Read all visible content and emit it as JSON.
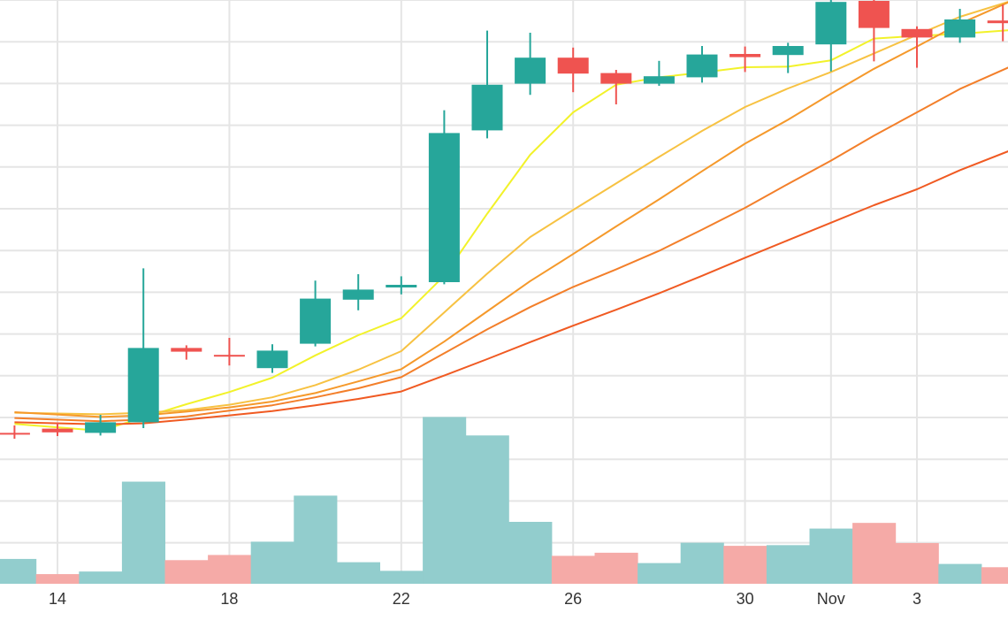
{
  "chart_data": {
    "type": "candlestick",
    "title": "",
    "xlabel": "",
    "ylabel": "",
    "grid": true,
    "price_range": [
      0,
      100
    ],
    "volume_range": [
      0,
      100
    ],
    "x_ticks": [
      {
        "day": 14,
        "label": "14"
      },
      {
        "day": 18,
        "label": "18"
      },
      {
        "day": 22,
        "label": "22"
      },
      {
        "day": 26,
        "label": "26"
      },
      {
        "day": 30,
        "label": "30"
      },
      {
        "day": 32,
        "label": "Nov"
      },
      {
        "day": 34,
        "label": "3"
      }
    ],
    "candles": [
      {
        "day": 13,
        "open": 22.6,
        "close": 22.4,
        "high": 24.0,
        "low": 21.5
      },
      {
        "day": 14,
        "open": 23.4,
        "close": 22.7,
        "high": 24.5,
        "low": 22.0
      },
      {
        "day": 15,
        "open": 22.6,
        "close": 24.6,
        "high": 26.0,
        "low": 22.1
      },
      {
        "day": 16,
        "open": 24.6,
        "close": 38.6,
        "high": 53.6,
        "low": 23.5
      },
      {
        "day": 17,
        "open": 38.6,
        "close": 37.9,
        "high": 39.1,
        "low": 36.4
      },
      {
        "day": 18,
        "open": 37.3,
        "close": 37.1,
        "high": 40.5,
        "low": 35.3
      },
      {
        "day": 19,
        "open": 34.8,
        "close": 38.1,
        "high": 39.3,
        "low": 33.9
      },
      {
        "day": 20,
        "open": 39.4,
        "close": 47.9,
        "high": 51.3,
        "low": 38.9
      },
      {
        "day": 21,
        "open": 47.7,
        "close": 49.6,
        "high": 52.5,
        "low": 45.7
      },
      {
        "day": 22,
        "open": 50.0,
        "close": 50.5,
        "high": 52.1,
        "low": 48.7
      },
      {
        "day": 23,
        "open": 51.0,
        "close": 79.1,
        "high": 83.4,
        "low": 50.6
      },
      {
        "day": 24,
        "open": 79.6,
        "close": 88.2,
        "high": 98.4,
        "low": 78.1
      },
      {
        "day": 25,
        "open": 88.4,
        "close": 93.3,
        "high": 98.0,
        "low": 86.3
      },
      {
        "day": 26,
        "open": 93.3,
        "close": 90.3,
        "high": 95.2,
        "low": 86.8
      },
      {
        "day": 27,
        "open": 90.4,
        "close": 88.4,
        "high": 91.0,
        "low": 84.5
      },
      {
        "day": 28,
        "open": 88.4,
        "close": 89.8,
        "high": 92.7,
        "low": 88.0
      },
      {
        "day": 29,
        "open": 89.6,
        "close": 93.9,
        "high": 95.5,
        "low": 88.6
      },
      {
        "day": 30,
        "open": 94.0,
        "close": 93.4,
        "high": 95.4,
        "low": 90.6
      },
      {
        "day": 31,
        "open": 93.8,
        "close": 95.5,
        "high": 96.1,
        "low": 90.4
      },
      {
        "day": 32,
        "open": 95.8,
        "close": 103.8,
        "high": 105.2,
        "low": 90.7
      },
      {
        "day": 33,
        "open": 104.0,
        "close": 98.9,
        "high": 108.6,
        "low": 92.6
      },
      {
        "day": 34,
        "open": 98.7,
        "close": 97.1,
        "high": 99.2,
        "low": 91.4
      },
      {
        "day": 35,
        "open": 97.1,
        "close": 100.5,
        "high": 102.5,
        "low": 96.1
      },
      {
        "day": 36,
        "open": 100.3,
        "close": 99.8,
        "high": 103.3,
        "low": 96.4
      }
    ],
    "volume": [
      {
        "day": 13,
        "value": 14.4,
        "direction": "up"
      },
      {
        "day": 14,
        "value": 5.6,
        "direction": "down"
      },
      {
        "day": 15,
        "value": 7.1,
        "direction": "up"
      },
      {
        "day": 16,
        "value": 59.2,
        "direction": "up"
      },
      {
        "day": 17,
        "value": 13.7,
        "direction": "down"
      },
      {
        "day": 18,
        "value": 16.7,
        "direction": "down"
      },
      {
        "day": 19,
        "value": 24.4,
        "direction": "up"
      },
      {
        "day": 20,
        "value": 51.1,
        "direction": "up"
      },
      {
        "day": 21,
        "value": 12.5,
        "direction": "up"
      },
      {
        "day": 22,
        "value": 7.5,
        "direction": "up"
      },
      {
        "day": 23,
        "value": 96.7,
        "direction": "up"
      },
      {
        "day": 24,
        "value": 86.0,
        "direction": "up"
      },
      {
        "day": 25,
        "value": 35.9,
        "direction": "up"
      },
      {
        "day": 26,
        "value": 16.2,
        "direction": "down"
      },
      {
        "day": 27,
        "value": 18.0,
        "direction": "down"
      },
      {
        "day": 28,
        "value": 12.0,
        "direction": "up"
      },
      {
        "day": 29,
        "value": 23.8,
        "direction": "up"
      },
      {
        "day": 30,
        "value": 22.0,
        "direction": "down"
      },
      {
        "day": 31,
        "value": 22.4,
        "direction": "up"
      },
      {
        "day": 32,
        "value": 32.0,
        "direction": "up"
      },
      {
        "day": 33,
        "value": 35.3,
        "direction": "down"
      },
      {
        "day": 34,
        "value": 23.6,
        "direction": "down"
      },
      {
        "day": 35,
        "value": 11.5,
        "direction": "up"
      },
      {
        "day": 36,
        "value": 9.6,
        "direction": "down"
      }
    ],
    "moving_averages": [
      {
        "color": "#f2f22a",
        "x": [
          13,
          15,
          16,
          17,
          18,
          19,
          20,
          21,
          22,
          23,
          24,
          25,
          26,
          27,
          28,
          29,
          30,
          31,
          32,
          33,
          34,
          35,
          36.2
        ],
        "y": [
          24.3,
          23.0,
          25.5,
          28.0,
          30.3,
          33.0,
          37.2,
          41.0,
          44.2,
          52.2,
          63.9,
          75.0,
          83.0,
          88.2,
          89.6,
          90.5,
          91.5,
          91.6,
          92.8,
          96.9,
          97.4,
          97.8,
          98.5
        ]
      },
      {
        "color": "#f7c242",
        "x": [
          13,
          15,
          16,
          17,
          18,
          19,
          20,
          21,
          22,
          23,
          24,
          25,
          26,
          27,
          28,
          29,
          30,
          31,
          32,
          33,
          34,
          35,
          36.2
        ],
        "y": [
          26.4,
          26.1,
          26.4,
          26.9,
          27.9,
          29.3,
          31.6,
          34.5,
          38.0,
          45.3,
          52.6,
          59.5,
          64.6,
          69.6,
          74.6,
          79.5,
          84.0,
          87.5,
          90.6,
          94.1,
          97.6,
          101.0,
          104.0
        ]
      },
      {
        "color": "#f5992b",
        "x": [
          13,
          15,
          16,
          17,
          18,
          19,
          20,
          21,
          22,
          23,
          24,
          25,
          26,
          27,
          28,
          29,
          30,
          31,
          32,
          33,
          34,
          35,
          36.2
        ],
        "y": [
          26.5,
          25.6,
          25.9,
          26.6,
          27.4,
          28.5,
          30.1,
          32.3,
          34.6,
          39.8,
          45.5,
          51.2,
          56.3,
          61.5,
          66.6,
          71.9,
          77.1,
          81.6,
          86.5,
          91.2,
          95.4,
          99.7,
          104.0
        ]
      },
      {
        "color": "#f37f2a",
        "x": [
          13,
          15,
          16,
          17,
          18,
          19,
          20,
          21,
          22,
          23,
          24,
          25,
          26,
          27,
          28,
          29,
          30,
          31,
          32,
          33,
          34,
          35,
          36.2
        ],
        "y": [
          25.4,
          24.8,
          25.1,
          25.7,
          26.8,
          27.8,
          29.3,
          31.0,
          33.1,
          37.6,
          42.1,
          46.3,
          50.1,
          53.4,
          56.9,
          60.9,
          65.0,
          69.5,
          73.9,
          78.6,
          83.0,
          87.4,
          91.7
        ]
      },
      {
        "color": "#f05a22",
        "x": [
          13,
          15,
          16,
          17,
          18,
          19,
          20,
          21,
          22,
          23,
          24,
          25,
          26,
          27,
          28,
          29,
          30,
          31,
          32,
          33,
          34,
          35,
          36.2
        ],
        "y": [
          24.6,
          24.2,
          24.4,
          25.1,
          25.9,
          26.7,
          27.8,
          29.0,
          30.4,
          33.4,
          36.5,
          39.7,
          42.8,
          45.8,
          48.9,
          52.2,
          55.6,
          58.9,
          62.2,
          65.5,
          68.5,
          72.1,
          75.9
        ]
      }
    ],
    "colors": {
      "up": "#26a69a",
      "down": "#ef5350",
      "volume_up": "#92cdcd",
      "volume_down": "#f5aaa7",
      "grid": "#e5e5e5"
    }
  }
}
